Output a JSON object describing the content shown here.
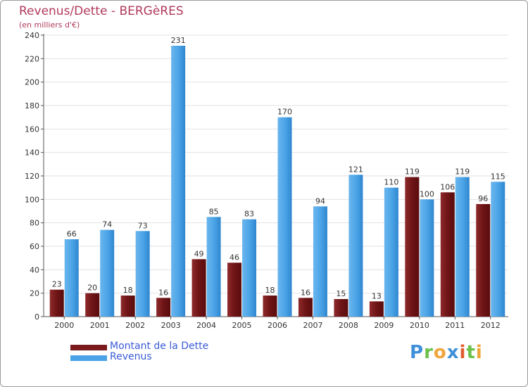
{
  "title": "Revenus/Dette - BERGèRES",
  "subtitle": "(en milliers d'€)",
  "colors": {
    "dette": "#7a1a1d",
    "revenus": "#4aa3e6",
    "title": "#b03a5b",
    "legend_text": "#3a5bd6"
  },
  "legend": {
    "dette_label": "Montant de la Dette",
    "revenus_label": "Revenus"
  },
  "logo": {
    "text": "Proxiti"
  },
  "chart_data": {
    "type": "bar",
    "categories": [
      "2000",
      "2001",
      "2002",
      "2003",
      "2004",
      "2005",
      "2006",
      "2007",
      "2008",
      "2009",
      "2010",
      "2011",
      "2012"
    ],
    "series": [
      {
        "name": "Montant de la Dette",
        "values": [
          23,
          20,
          18,
          16,
          49,
          46,
          18,
          16,
          15,
          13,
          119,
          106,
          96
        ]
      },
      {
        "name": "Revenus",
        "values": [
          66,
          74,
          73,
          231,
          85,
          83,
          170,
          94,
          121,
          110,
          100,
          119,
          115
        ]
      }
    ],
    "title": "Revenus/Dette - BERGèRES",
    "ylabel": "(en milliers d'€)",
    "ylim": [
      0,
      240
    ],
    "yticks": [
      0,
      20,
      40,
      60,
      80,
      100,
      120,
      140,
      160,
      180,
      200,
      220,
      240
    ],
    "grid": true,
    "legend_position": "bottom-left"
  }
}
